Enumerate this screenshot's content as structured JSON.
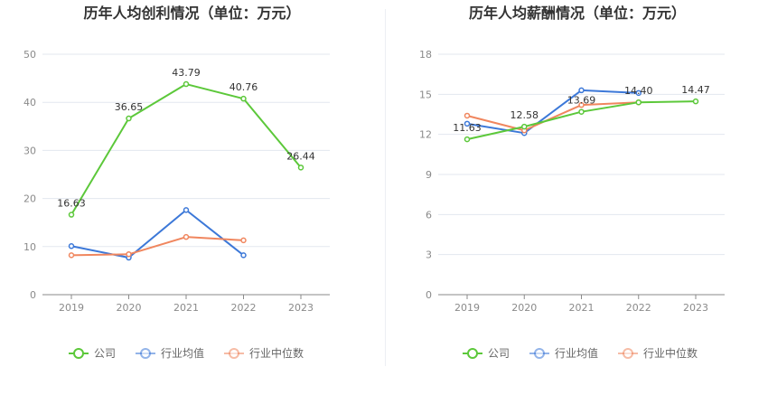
{
  "chart_data": [
    {
      "type": "line",
      "title": "历年人均创利情况（单位：万元）",
      "categories": [
        "2019",
        "2020",
        "2021",
        "2022",
        "2023"
      ],
      "ylim": [
        0,
        50
      ],
      "yticks": [
        0,
        10,
        20,
        30,
        40,
        50
      ],
      "grid": true,
      "legend_position": "bottom",
      "series": [
        {
          "name": "公司",
          "color": "#5cc83a",
          "values": [
            16.63,
            36.65,
            43.79,
            40.76,
            26.44
          ],
          "labels": [
            "16.63",
            "36.65",
            "43.79",
            "40.76",
            "26.44"
          ]
        },
        {
          "name": "行业均值",
          "color": "#3c78d8",
          "values": [
            10.1,
            7.7,
            17.6,
            8.2,
            null
          ]
        },
        {
          "name": "行业中位数",
          "color": "#f0865e",
          "values": [
            8.2,
            8.4,
            12.0,
            11.3,
            null
          ]
        }
      ]
    },
    {
      "type": "line",
      "title": "历年人均薪酬情况（单位：万元）",
      "categories": [
        "2019",
        "2020",
        "2021",
        "2022",
        "2023"
      ],
      "ylim": [
        0,
        18
      ],
      "yticks": [
        0,
        3,
        6,
        9,
        12,
        15,
        18
      ],
      "grid": true,
      "legend_position": "bottom",
      "series": [
        {
          "name": "公司",
          "color": "#5cc83a",
          "values": [
            11.63,
            12.58,
            13.69,
            14.4,
            14.47
          ],
          "labels": [
            "11.63",
            "12.58",
            "13.69",
            "14.40",
            "14.47"
          ]
        },
        {
          "name": "行业均值",
          "color": "#3c78d8",
          "values": [
            12.8,
            12.1,
            15.3,
            15.1,
            null
          ]
        },
        {
          "name": "行业中位数",
          "color": "#f0865e",
          "values": [
            13.4,
            12.3,
            14.2,
            14.4,
            null
          ]
        }
      ]
    }
  ]
}
